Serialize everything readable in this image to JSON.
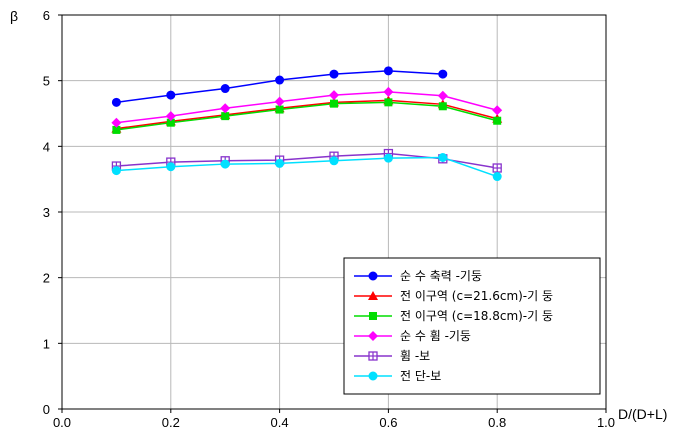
{
  "chart_data": {
    "type": "line",
    "xlabel": "D/(D+L)",
    "ylabel": "β",
    "xlim": [
      0.0,
      1.0
    ],
    "ylim": [
      0,
      6
    ],
    "xticks": [
      "0.0",
      "0.2",
      "0.4",
      "0.6",
      "0.8",
      "1.0"
    ],
    "yticks": [
      "0",
      "1",
      "2",
      "3",
      "4",
      "5",
      "6"
    ],
    "grid": true,
    "legend_position": "bottom-right",
    "series": [
      {
        "name": "순 수 축력 -기둥",
        "color": "#0000ff",
        "marker": "circle",
        "x": [
          0.1,
          0.2,
          0.3,
          0.4,
          0.5,
          0.6,
          0.7
        ],
        "y": [
          4.67,
          4.78,
          4.88,
          5.01,
          5.1,
          5.15,
          5.1
        ]
      },
      {
        "name": "전 이구역 (c=21.6cm)-기 둥",
        "color": "#ff0000",
        "marker": "triangle",
        "x": [
          0.1,
          0.2,
          0.3,
          0.4,
          0.5,
          0.6,
          0.7,
          0.8
        ],
        "y": [
          4.27,
          4.38,
          4.48,
          4.58,
          4.67,
          4.7,
          4.64,
          4.42
        ]
      },
      {
        "name": "전 이구역 (c=18.8cm)-기 둥",
        "color": "#00dd00",
        "marker": "square",
        "x": [
          0.1,
          0.2,
          0.3,
          0.4,
          0.5,
          0.6,
          0.7,
          0.8
        ],
        "y": [
          4.25,
          4.36,
          4.46,
          4.56,
          4.65,
          4.67,
          4.61,
          4.39
        ]
      },
      {
        "name": "순 수 휨 -기둥",
        "color": "#ff00ff",
        "marker": "diamond",
        "x": [
          0.1,
          0.2,
          0.3,
          0.4,
          0.5,
          0.6,
          0.7,
          0.8
        ],
        "y": [
          4.36,
          4.46,
          4.58,
          4.68,
          4.78,
          4.83,
          4.77,
          4.55
        ]
      },
      {
        "name": "휨 -보",
        "color": "#8833cc",
        "marker": "square-plus",
        "x": [
          0.1,
          0.2,
          0.3,
          0.4,
          0.5,
          0.6,
          0.7,
          0.8
        ],
        "y": [
          3.7,
          3.76,
          3.78,
          3.79,
          3.85,
          3.89,
          3.81,
          3.67
        ]
      },
      {
        "name": "전 단-보",
        "color": "#00e0ff",
        "marker": "circle",
        "x": [
          0.1,
          0.2,
          0.3,
          0.4,
          0.5,
          0.6,
          0.7,
          0.8
        ],
        "y": [
          3.63,
          3.69,
          3.73,
          3.74,
          3.78,
          3.82,
          3.83,
          3.54
        ]
      }
    ]
  }
}
